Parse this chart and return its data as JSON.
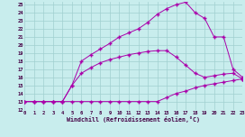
{
  "bg_color": "#c8eded",
  "line_color": "#aa00aa",
  "xlabel": "Windchill (Refroidissement éolien,°C)",
  "xlim": [
    0,
    23
  ],
  "ylim": [
    12,
    25.4
  ],
  "xticks": [
    0,
    1,
    2,
    3,
    4,
    5,
    6,
    7,
    8,
    9,
    10,
    11,
    12,
    13,
    14,
    15,
    16,
    17,
    18,
    19,
    20,
    21,
    22,
    23
  ],
  "yticks": [
    12,
    13,
    14,
    15,
    16,
    17,
    18,
    19,
    20,
    21,
    22,
    23,
    24,
    25
  ],
  "s1_x": [
    0,
    1,
    2,
    3,
    4,
    5,
    6,
    7,
    8,
    9,
    10,
    11,
    12,
    13,
    14,
    15,
    16,
    17,
    18,
    19,
    20,
    21,
    22,
    23
  ],
  "s1_y": [
    13,
    13,
    13,
    13,
    13,
    13,
    13,
    13,
    13,
    13,
    13,
    13,
    13,
    13,
    13,
    13.5,
    14,
    14.3,
    14.7,
    15.0,
    15.2,
    15.4,
    15.6,
    15.8
  ],
  "s2_x": [
    0,
    1,
    2,
    3,
    4,
    5,
    6,
    7,
    8,
    9,
    10,
    11,
    12,
    13,
    14,
    15,
    16,
    17,
    18,
    19,
    20,
    21,
    22,
    23
  ],
  "s2_y": [
    13,
    13,
    13,
    13,
    13,
    15,
    16.5,
    17.2,
    17.8,
    18.2,
    18.5,
    18.8,
    19.0,
    19.2,
    19.3,
    19.3,
    18.5,
    17.5,
    16.5,
    16.0,
    16.2,
    16.4,
    16.5,
    15.8
  ],
  "s3_x": [
    0,
    1,
    2,
    3,
    4,
    5,
    6,
    7,
    8,
    9,
    10,
    11,
    12,
    13,
    14,
    15,
    16,
    17,
    18,
    19,
    20,
    21,
    22,
    23
  ],
  "s3_y": [
    13,
    13,
    13,
    13,
    13,
    15,
    18.0,
    18.8,
    19.5,
    20.2,
    21.0,
    21.5,
    22.0,
    22.8,
    23.8,
    24.5,
    25.0,
    25.3,
    24.0,
    23.3,
    21.0,
    21.0,
    17.0,
    16.0
  ]
}
